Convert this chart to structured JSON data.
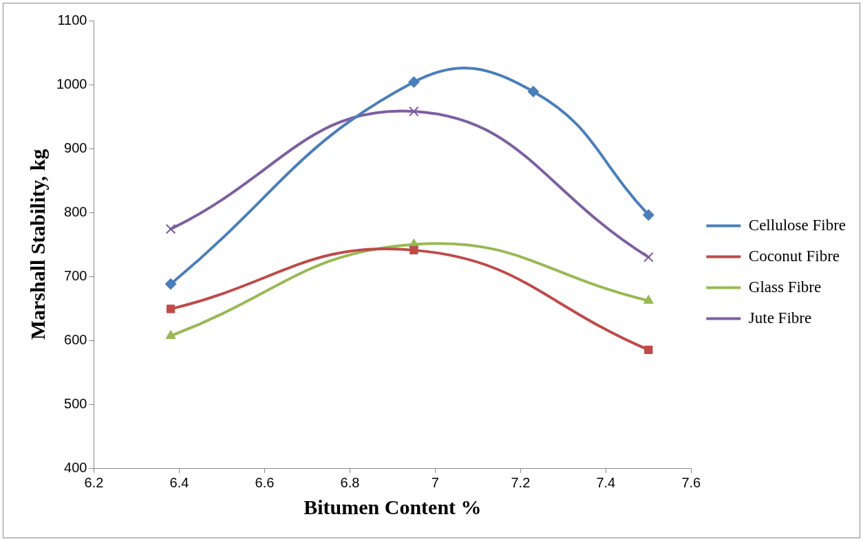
{
  "chart_data": {
    "type": "line",
    "xlabel": "Bitumen Content %",
    "ylabel": "Marshall Stability, kg",
    "xlim": [
      6.2,
      7.6
    ],
    "xticks": [
      6.2,
      6.4,
      6.6,
      6.8,
      7,
      7.2,
      7.4,
      7.6
    ],
    "ylim": [
      400,
      1100
    ],
    "yticks": [
      400,
      500,
      600,
      700,
      800,
      900,
      1000,
      1100
    ],
    "grid": false,
    "legend": "right",
    "series": [
      {
        "name": "Cellulose Fibre",
        "color": "#4a7ebb",
        "marker": "diamond",
        "x": [
          6.38,
          6.95,
          7.23,
          7.5
        ],
        "values": [
          688,
          1004,
          989,
          796
        ]
      },
      {
        "name": "Coconut Fibre",
        "color": "#be4b48",
        "marker": "square",
        "x": [
          6.38,
          6.95,
          7.5
        ],
        "values": [
          649,
          741,
          585
        ]
      },
      {
        "name": "Glass Fibre",
        "color": "#98b954",
        "marker": "triangle",
        "x": [
          6.38,
          6.95,
          7.5
        ],
        "values": [
          607,
          750,
          662
        ]
      },
      {
        "name": "Jute Fibre",
        "color": "#7d5fa0",
        "marker": "cross",
        "x": [
          6.38,
          6.95,
          7.5
        ],
        "values": [
          774,
          958,
          730
        ]
      }
    ]
  }
}
